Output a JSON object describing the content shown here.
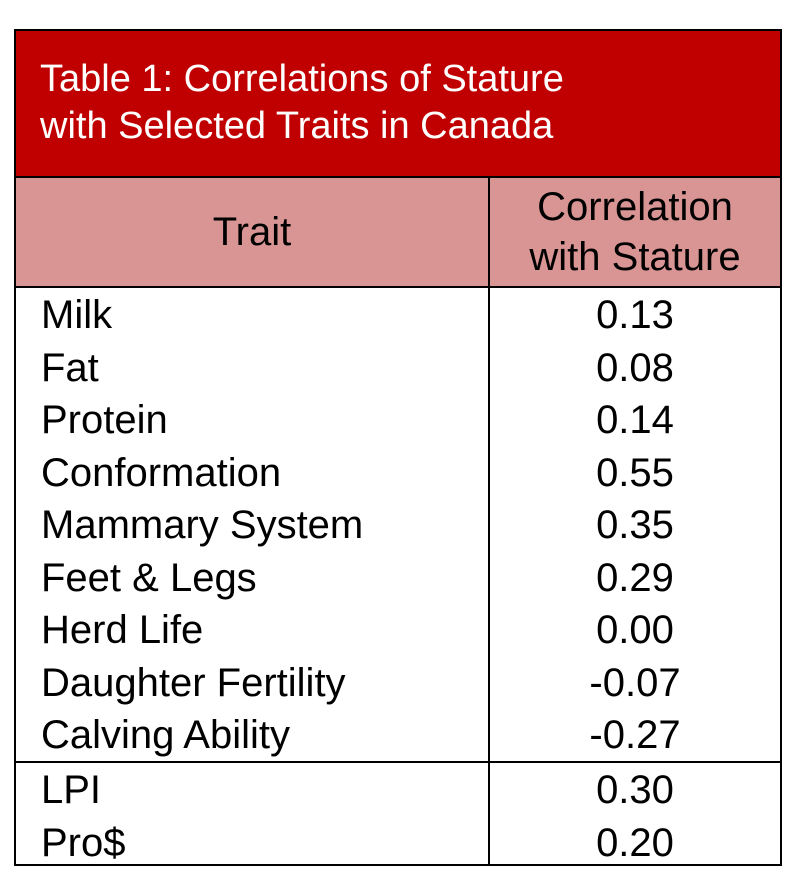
{
  "title": {
    "line1": "Table 1: Correlations of Stature",
    "line2": "with Selected Traits in Canada"
  },
  "headers": {
    "trait": "Trait",
    "correlation_line1": "Correlation",
    "correlation_line2": "with Stature"
  },
  "rows": [
    {
      "trait": "Milk",
      "correlation": "0.13"
    },
    {
      "trait": "Fat",
      "correlation": "0.08"
    },
    {
      "trait": "Protein",
      "correlation": "0.14"
    },
    {
      "trait": "Conformation",
      "correlation": "0.55"
    },
    {
      "trait": "Mammary System",
      "correlation": "0.35"
    },
    {
      "trait": "Feet & Legs",
      "correlation": "0.29"
    },
    {
      "trait": "Herd Life",
      "correlation": "0.00"
    },
    {
      "trait": "Daughter Fertility",
      "correlation": "-0.07"
    },
    {
      "trait": "Calving Ability",
      "correlation": "-0.27"
    }
  ],
  "index_rows": [
    {
      "trait": "LPI",
      "correlation": "0.30"
    },
    {
      "trait": "Pro$",
      "correlation": "0.20"
    }
  ],
  "colors": {
    "title_background": "#c00000",
    "header_background": "#d99594",
    "title_text": "#ffffff"
  }
}
